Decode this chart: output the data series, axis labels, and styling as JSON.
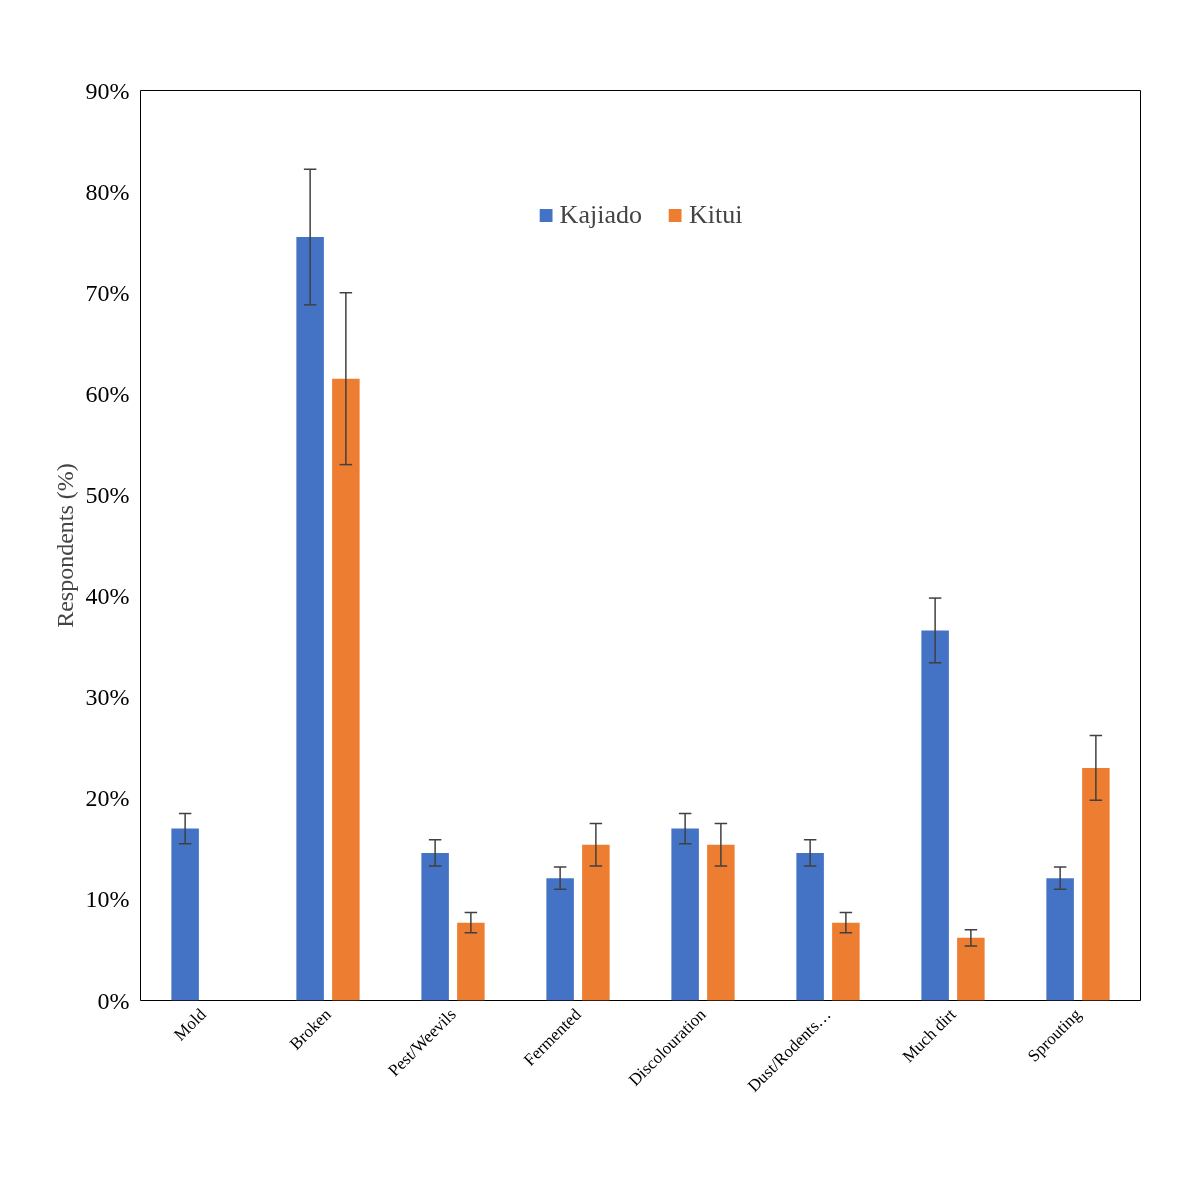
{
  "chart_data": {
    "type": "bar",
    "ylabel": "Respondents (%)",
    "categories": [
      "Mold",
      "Broken",
      "Pest/Weevils",
      "Fermented",
      "Discolouration",
      "Dust/Rodents…",
      "Much dirt",
      "Sprouting"
    ],
    "series": [
      {
        "name": "Kajiado",
        "color": "#4472c4",
        "values": [
          17.0,
          75.5,
          14.6,
          12.1,
          17.0,
          14.6,
          36.6,
          12.1
        ],
        "errors": [
          1.5,
          6.7,
          1.3,
          1.1,
          1.5,
          1.3,
          3.2,
          1.1
        ]
      },
      {
        "name": "Kitui",
        "color": "#ed7d31",
        "values": [
          null,
          61.5,
          7.7,
          15.4,
          15.4,
          7.7,
          6.2,
          23.0
        ],
        "errors": [
          null,
          8.5,
          1.0,
          2.1,
          2.1,
          1.0,
          0.8,
          3.2
        ]
      }
    ],
    "ylim": [
      0,
      90
    ],
    "yticks": [
      {
        "value": 0,
        "label": "0%"
      },
      {
        "value": 10,
        "label": "10%"
      },
      {
        "value": 20,
        "label": "20%"
      },
      {
        "value": 30,
        "label": "30%"
      },
      {
        "value": 40,
        "label": "40%"
      },
      {
        "value": 50,
        "label": "50%"
      },
      {
        "value": 60,
        "label": "60%"
      },
      {
        "value": 70,
        "label": "70%"
      },
      {
        "value": 80,
        "label": "80%"
      },
      {
        "value": 90,
        "label": "90%"
      }
    ],
    "grid": false,
    "legend": "top"
  }
}
